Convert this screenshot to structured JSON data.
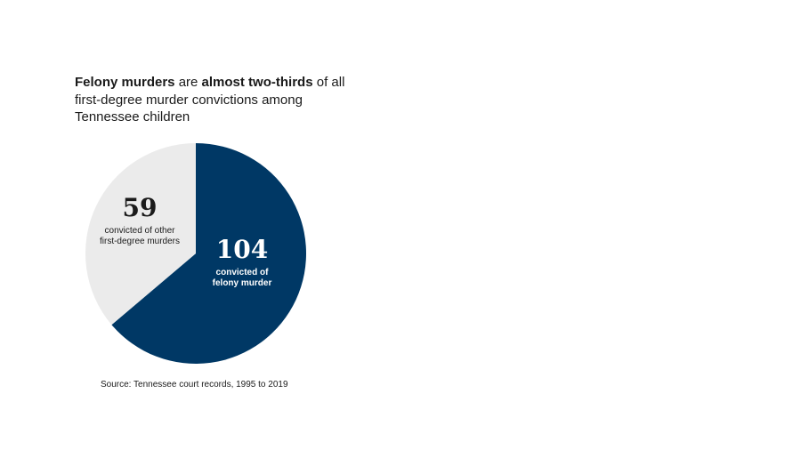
{
  "header": {
    "title_parts": [
      {
        "text": "Felony murders",
        "bold": true
      },
      {
        "text": " are ",
        "bold": false
      },
      {
        "text": "almost two-thirds",
        "bold": true
      },
      {
        "text": " of all first-degree murder convictions among Tennessee children",
        "bold": false
      }
    ]
  },
  "chart_data": {
    "type": "pie",
    "title": "Felony murders are almost two-thirds of all first-degree murder convictions among Tennessee children",
    "slices": [
      {
        "name": "convicted of felony murder",
        "value": 104,
        "value_label": "104",
        "label_lines": [
          "convicted of",
          "felony murder"
        ],
        "color": "#003865",
        "text_color": "#ffffff"
      },
      {
        "name": "convicted of other first-degree murders",
        "value": 59,
        "value_label": "59",
        "label_lines": [
          "convicted of other",
          "first-degree murders"
        ],
        "color": "#ebebeb",
        "text_color": "#1a1a1a"
      }
    ],
    "start": "12 o'clock",
    "direction": "clockwise",
    "legend": "none"
  },
  "footer": {
    "source": "Source: Tennessee court records, 1995 to 2019"
  }
}
